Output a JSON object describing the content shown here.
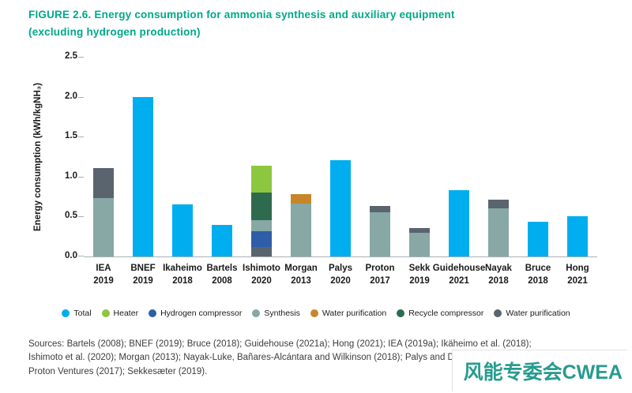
{
  "figure": {
    "title_line1": "FIGURE 2.6.  Energy consumption for ammonia synthesis and auxiliary equipment",
    "title_line2": "(excluding hydrogen production)"
  },
  "chart_data": {
    "type": "bar",
    "stacked": true,
    "title": "Energy consumption for ammonia synthesis and auxiliary equipment (excluding hydrogen production)",
    "xlabel": "",
    "ylabel": "Energy consumption (kWh/kgNH₃)",
    "ylim": [
      0,
      2.5
    ],
    "y_ticks": [
      "0.0",
      "0.5",
      "1.0",
      "1.5",
      "2.0",
      "2.5"
    ],
    "grid": false,
    "legend_position": "bottom",
    "legend": [
      {
        "label": "Total",
        "color": "#00AEEF"
      },
      {
        "label": "Heater",
        "color": "#8DC63F"
      },
      {
        "label": "Hydrogen compressor",
        "color": "#2F5EA8"
      },
      {
        "label": "Synthesis",
        "color": "#87A8A4"
      },
      {
        "label": "Water purification",
        "color": "#C8862B"
      },
      {
        "label": "Recycle compressor",
        "color": "#2E6B4E"
      },
      {
        "label": "Water purification",
        "color": "#5A646E"
      }
    ],
    "bars": [
      {
        "label": [
          "IEA",
          "2019"
        ],
        "segments": [
          {
            "legend": 3,
            "value": 0.73
          },
          {
            "legend": 6,
            "value": 0.38
          }
        ]
      },
      {
        "label": [
          "BNEF",
          "2019"
        ],
        "segments": [
          {
            "legend": 0,
            "value": 2.0
          }
        ]
      },
      {
        "label": [
          "Ikaheimo",
          "2018"
        ],
        "segments": [
          {
            "legend": 0,
            "value": 0.65
          }
        ]
      },
      {
        "label": [
          "Bartels",
          "2008"
        ],
        "segments": [
          {
            "legend": 0,
            "value": 0.4
          }
        ]
      },
      {
        "label": [
          "Ishimoto",
          "2020"
        ],
        "segments": [
          {
            "legend": 6,
            "value": 0.12
          },
          {
            "legend": 2,
            "value": 0.2
          },
          {
            "legend": 3,
            "value": 0.13
          },
          {
            "legend": 5,
            "value": 0.35
          },
          {
            "legend": 1,
            "value": 0.34
          }
        ]
      },
      {
        "label": [
          "Morgan",
          "2013"
        ],
        "segments": [
          {
            "legend": 3,
            "value": 0.66
          },
          {
            "legend": 4,
            "value": 0.12
          }
        ]
      },
      {
        "label": [
          "Palys",
          "2020"
        ],
        "segments": [
          {
            "legend": 0,
            "value": 1.21
          }
        ]
      },
      {
        "label": [
          "Proton",
          "2017"
        ],
        "segments": [
          {
            "legend": 3,
            "value": 0.55
          },
          {
            "legend": 6,
            "value": 0.08
          }
        ]
      },
      {
        "label": [
          "Sekk",
          "2019"
        ],
        "segments": [
          {
            "legend": 3,
            "value": 0.3
          },
          {
            "legend": 6,
            "value": 0.06
          }
        ]
      },
      {
        "label": [
          "Guidehouse",
          "2021"
        ],
        "segments": [
          {
            "legend": 0,
            "value": 0.83
          }
        ]
      },
      {
        "label": [
          "Nayak",
          "2018"
        ],
        "segments": [
          {
            "legend": 3,
            "value": 0.6
          },
          {
            "legend": 6,
            "value": 0.11
          }
        ]
      },
      {
        "label": [
          "Bruce",
          "2018"
        ],
        "segments": [
          {
            "legend": 0,
            "value": 0.43
          }
        ]
      },
      {
        "label": [
          "Hong",
          "2021"
        ],
        "segments": [
          {
            "legend": 0,
            "value": 0.5
          }
        ]
      }
    ]
  },
  "sources": {
    "lines": [
      "Sources: Bartels (2008); BNEF (2019); Bruce (2018); Guidehouse (2021a); Hong (2021); IEA (2019a); Ikäheimo et al. (2018);",
      "Ishimoto et al. (2020); Morgan (2013); Nayak-Luke, Bañares-Alcántara and Wilkinson (2018); Palys and Daoutidis (2020);",
      "Proton Ventures (2017); Sekkesæter (2019)."
    ]
  },
  "watermark": {
    "text": "风能专委会CWEA"
  }
}
